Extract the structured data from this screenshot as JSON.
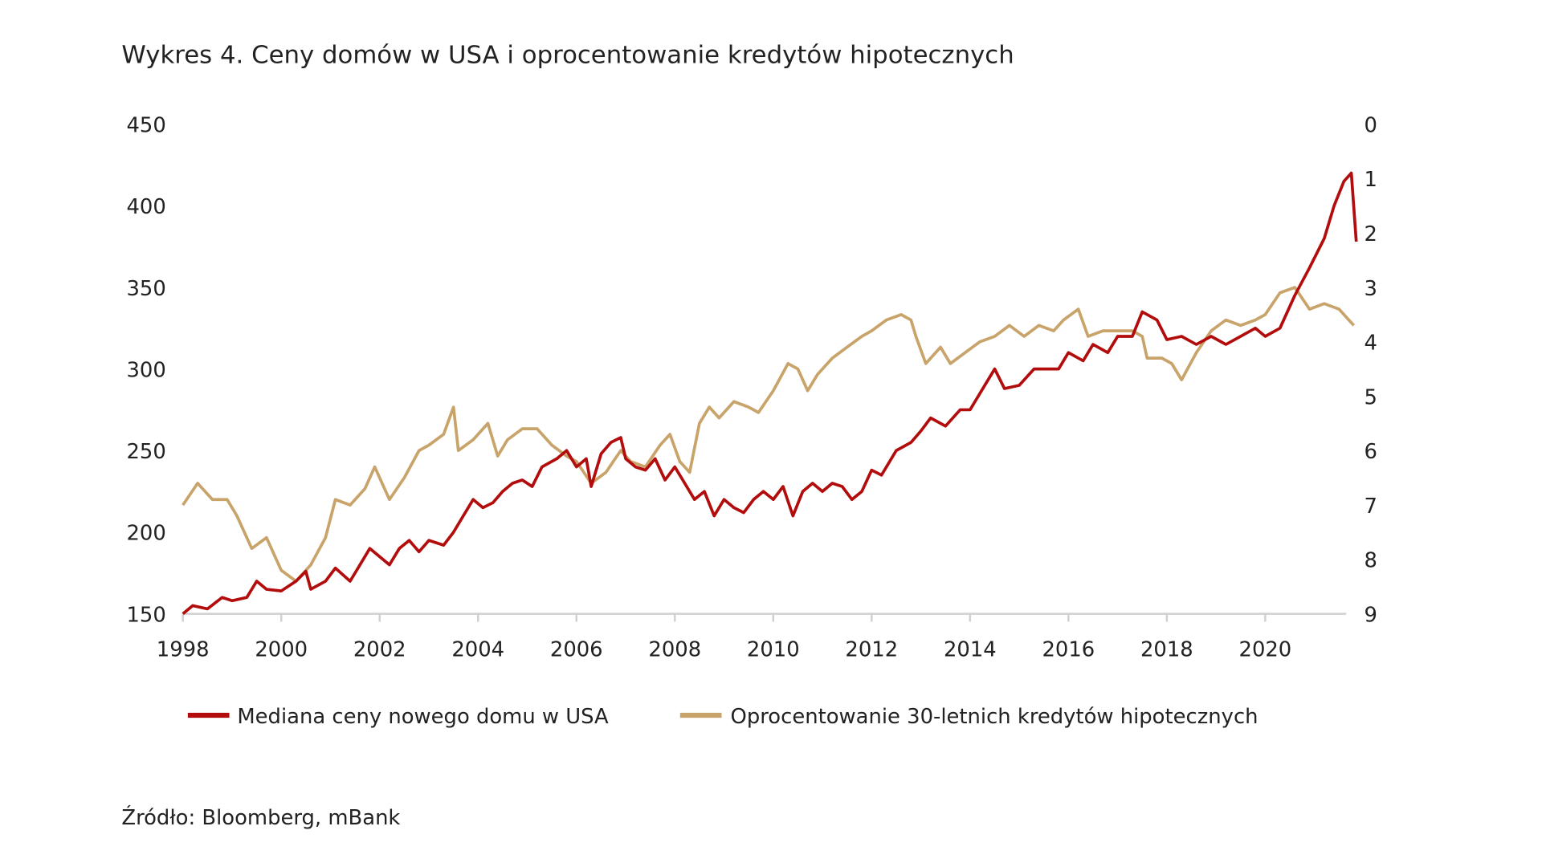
{
  "chart_data": {
    "type": "line",
    "title": "Wykres 4. Ceny domów w USA i oprocentowanie kredytów hipotecznych",
    "source": "Źródło: Bloomberg, mBank",
    "xlim": [
      1998,
      2022
    ],
    "x_ticks": [
      "1998",
      "2000",
      "2002",
      "2004",
      "2006",
      "2008",
      "2010",
      "2012",
      "2014",
      "2016",
      "2018",
      "2020"
    ],
    "y_left": {
      "lim": [
        150,
        450
      ],
      "ticks": [
        "150",
        "200",
        "250",
        "300",
        "350",
        "400",
        "450"
      ]
    },
    "y_right": {
      "lim": [
        0,
        9
      ],
      "inverted": true,
      "ticks": [
        "0",
        "1",
        "2",
        "3",
        "4",
        "5",
        "6",
        "7",
        "8",
        "9"
      ]
    },
    "legend_position": "bottom",
    "series": [
      {
        "name": "Mediana ceny nowego domu w USA",
        "axis": "left",
        "color": "#B20C0C",
        "x": [
          1998.0,
          1998.2,
          1998.5,
          1998.8,
          1999.0,
          1999.3,
          1999.5,
          1999.7,
          2000.0,
          2000.3,
          2000.5,
          2000.6,
          2000.9,
          2001.1,
          2001.4,
          2001.6,
          2001.8,
          2002.0,
          2002.2,
          2002.4,
          2002.6,
          2002.8,
          2003.0,
          2003.3,
          2003.5,
          2003.7,
          2003.9,
          2004.1,
          2004.3,
          2004.5,
          2004.7,
          2004.9,
          2005.1,
          2005.3,
          2005.6,
          2005.8,
          2006.0,
          2006.2,
          2006.3,
          2006.5,
          2006.7,
          2006.9,
          2007.0,
          2007.2,
          2007.4,
          2007.6,
          2007.8,
          2008.0,
          2008.2,
          2008.4,
          2008.6,
          2008.8,
          2009.0,
          2009.2,
          2009.4,
          2009.6,
          2009.8,
          2010.0,
          2010.2,
          2010.4,
          2010.6,
          2010.8,
          2011.0,
          2011.2,
          2011.4,
          2011.6,
          2011.8,
          2012.0,
          2012.2,
          2012.5,
          2012.8,
          2013.0,
          2013.2,
          2013.5,
          2013.8,
          2014.0,
          2014.3,
          2014.5,
          2014.7,
          2015.0,
          2015.3,
          2015.5,
          2015.8,
          2016.0,
          2016.3,
          2016.5,
          2016.8,
          2017.0,
          2017.3,
          2017.5,
          2017.8,
          2018.0,
          2018.3,
          2018.6,
          2018.9,
          2019.2,
          2019.5,
          2019.8,
          2020.0,
          2020.3,
          2020.6,
          2020.9,
          2021.2,
          2021.4,
          2021.6,
          2021.75,
          2021.85
        ],
        "values": [
          150,
          155,
          153,
          160,
          158,
          160,
          170,
          165,
          164,
          170,
          176,
          165,
          170,
          178,
          170,
          180,
          190,
          185,
          180,
          190,
          195,
          188,
          195,
          192,
          200,
          210,
          220,
          215,
          218,
          225,
          230,
          232,
          228,
          240,
          245,
          250,
          240,
          245,
          228,
          248,
          255,
          258,
          245,
          240,
          238,
          245,
          232,
          240,
          230,
          220,
          225,
          210,
          220,
          215,
          212,
          220,
          225,
          220,
          228,
          210,
          225,
          230,
          225,
          230,
          228,
          220,
          225,
          238,
          235,
          250,
          255,
          262,
          270,
          265,
          275,
          275,
          290,
          300,
          288,
          290,
          300,
          300,
          300,
          310,
          305,
          315,
          310,
          320,
          320,
          335,
          330,
          318,
          320,
          315,
          320,
          315,
          320,
          325,
          320,
          325,
          345,
          362,
          380,
          400,
          415,
          420,
          378
        ]
      },
      {
        "name": "Oprocentowanie 30-letnich kredytów hipotecznych",
        "axis": "right",
        "color": "#C8A36A",
        "x": [
          1998.0,
          1998.3,
          1998.6,
          1998.9,
          1999.1,
          1999.4,
          1999.7,
          2000.0,
          2000.3,
          2000.6,
          2000.9,
          2001.1,
          2001.4,
          2001.7,
          2001.9,
          2002.2,
          2002.5,
          2002.8,
          2003.0,
          2003.3,
          2003.5,
          2003.6,
          2003.9,
          2004.2,
          2004.4,
          2004.6,
          2004.9,
          2005.2,
          2005.5,
          2005.8,
          2006.0,
          2006.3,
          2006.6,
          2006.9,
          2007.1,
          2007.4,
          2007.7,
          2007.9,
          2008.1,
          2008.3,
          2008.5,
          2008.7,
          2008.9,
          2009.2,
          2009.5,
          2009.7,
          2010.0,
          2010.3,
          2010.5,
          2010.7,
          2010.9,
          2011.2,
          2011.5,
          2011.8,
          2012.0,
          2012.3,
          2012.6,
          2012.8,
          2012.9,
          2013.1,
          2013.4,
          2013.6,
          2013.9,
          2014.2,
          2014.5,
          2014.8,
          2015.1,
          2015.4,
          2015.7,
          2015.9,
          2016.2,
          2016.4,
          2016.7,
          2017.0,
          2017.3,
          2017.5,
          2017.6,
          2017.9,
          2018.1,
          2018.3,
          2018.6,
          2018.9,
          2019.2,
          2019.5,
          2019.8,
          2020.0,
          2020.3,
          2020.6,
          2020.9,
          2021.2,
          2021.5,
          2021.7,
          2021.8
        ],
        "values": [
          7.0,
          6.6,
          6.9,
          6.9,
          7.2,
          7.8,
          7.6,
          8.2,
          8.4,
          8.1,
          7.6,
          6.9,
          7.0,
          6.7,
          6.3,
          6.9,
          6.5,
          6.0,
          5.9,
          5.7,
          5.2,
          6.0,
          5.8,
          5.5,
          6.1,
          5.8,
          5.6,
          5.6,
          5.9,
          6.1,
          6.2,
          6.6,
          6.4,
          6.0,
          6.2,
          6.3,
          5.9,
          5.7,
          6.2,
          6.4,
          5.5,
          5.2,
          5.4,
          5.1,
          5.2,
          5.3,
          4.9,
          4.4,
          4.5,
          4.9,
          4.6,
          4.3,
          4.1,
          3.9,
          3.8,
          3.6,
          3.5,
          3.6,
          3.9,
          4.4,
          4.1,
          4.4,
          4.2,
          4.0,
          3.9,
          3.7,
          3.9,
          3.7,
          3.8,
          3.6,
          3.4,
          3.9,
          3.8,
          3.8,
          3.8,
          3.9,
          4.3,
          4.3,
          4.4,
          4.7,
          4.2,
          3.8,
          3.6,
          3.7,
          3.6,
          3.5,
          3.1,
          3.0,
          3.4,
          3.3,
          3.4,
          3.6,
          3.7
        ]
      }
    ]
  }
}
